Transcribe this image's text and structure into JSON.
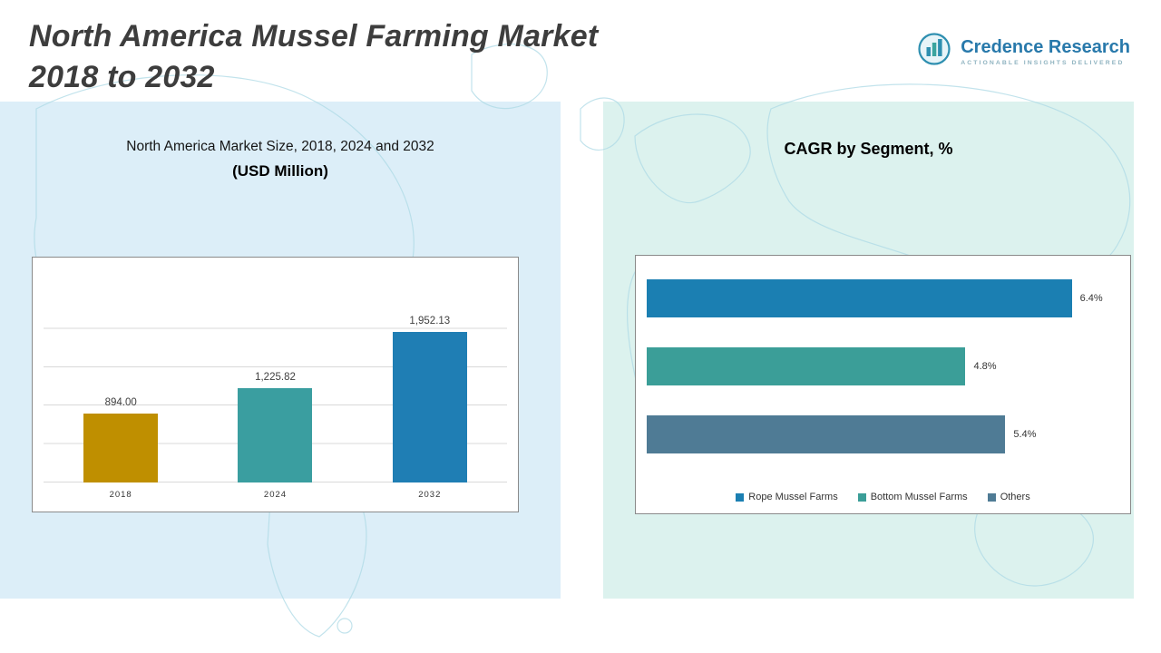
{
  "header": {
    "title_line1": "North America Mussel Farming Market",
    "title_line2": "2018 to 2032",
    "logo": {
      "name": "Credence Research",
      "tagline": "Actionable Insights Delivered"
    }
  },
  "left_panel": {
    "subtitle": "North America Market Size, 2018, 2024 and 2032",
    "unit": "(USD Million)"
  },
  "right_panel": {
    "title": "CAGR by Segment, %"
  },
  "colors": {
    "panel_left_bg": "#dceef8",
    "panel_right_bg": "#dcf2ee",
    "logo_blue": "#2879ab",
    "map_line": "#aed9e6"
  },
  "chart_data": [
    {
      "type": "bar",
      "title": "North America Market Size, 2018, 2024 and 2032 (USD Million)",
      "categories": [
        "2018",
        "2024",
        "2032"
      ],
      "values": [
        894.0,
        1225.82,
        1952.13
      ],
      "data_labels": [
        "894.00",
        "1,225.82",
        "1,952.13"
      ],
      "colors": [
        "#bf8f00",
        "#3a9ea0",
        "#1f7eb4"
      ],
      "xlabel": "",
      "ylabel": "",
      "ylim": [
        0,
        2500
      ],
      "grid": true,
      "legend_position": "none"
    },
    {
      "type": "bar",
      "orientation": "horizontal",
      "title": "CAGR by Segment, %",
      "categories": [
        "Rope Mussel Farms",
        "Bottom Mussel Farms",
        "Others"
      ],
      "values": [
        6.4,
        4.8,
        5.4
      ],
      "data_labels": [
        "6.4%",
        "4.8%",
        "5.4%"
      ],
      "colors": [
        "#1b7fb2",
        "#3b9e98",
        "#4f7b95"
      ],
      "xlabel": "",
      "ylabel": "",
      "xlim": [
        0,
        7
      ],
      "grid": false,
      "legend_position": "bottom"
    }
  ]
}
